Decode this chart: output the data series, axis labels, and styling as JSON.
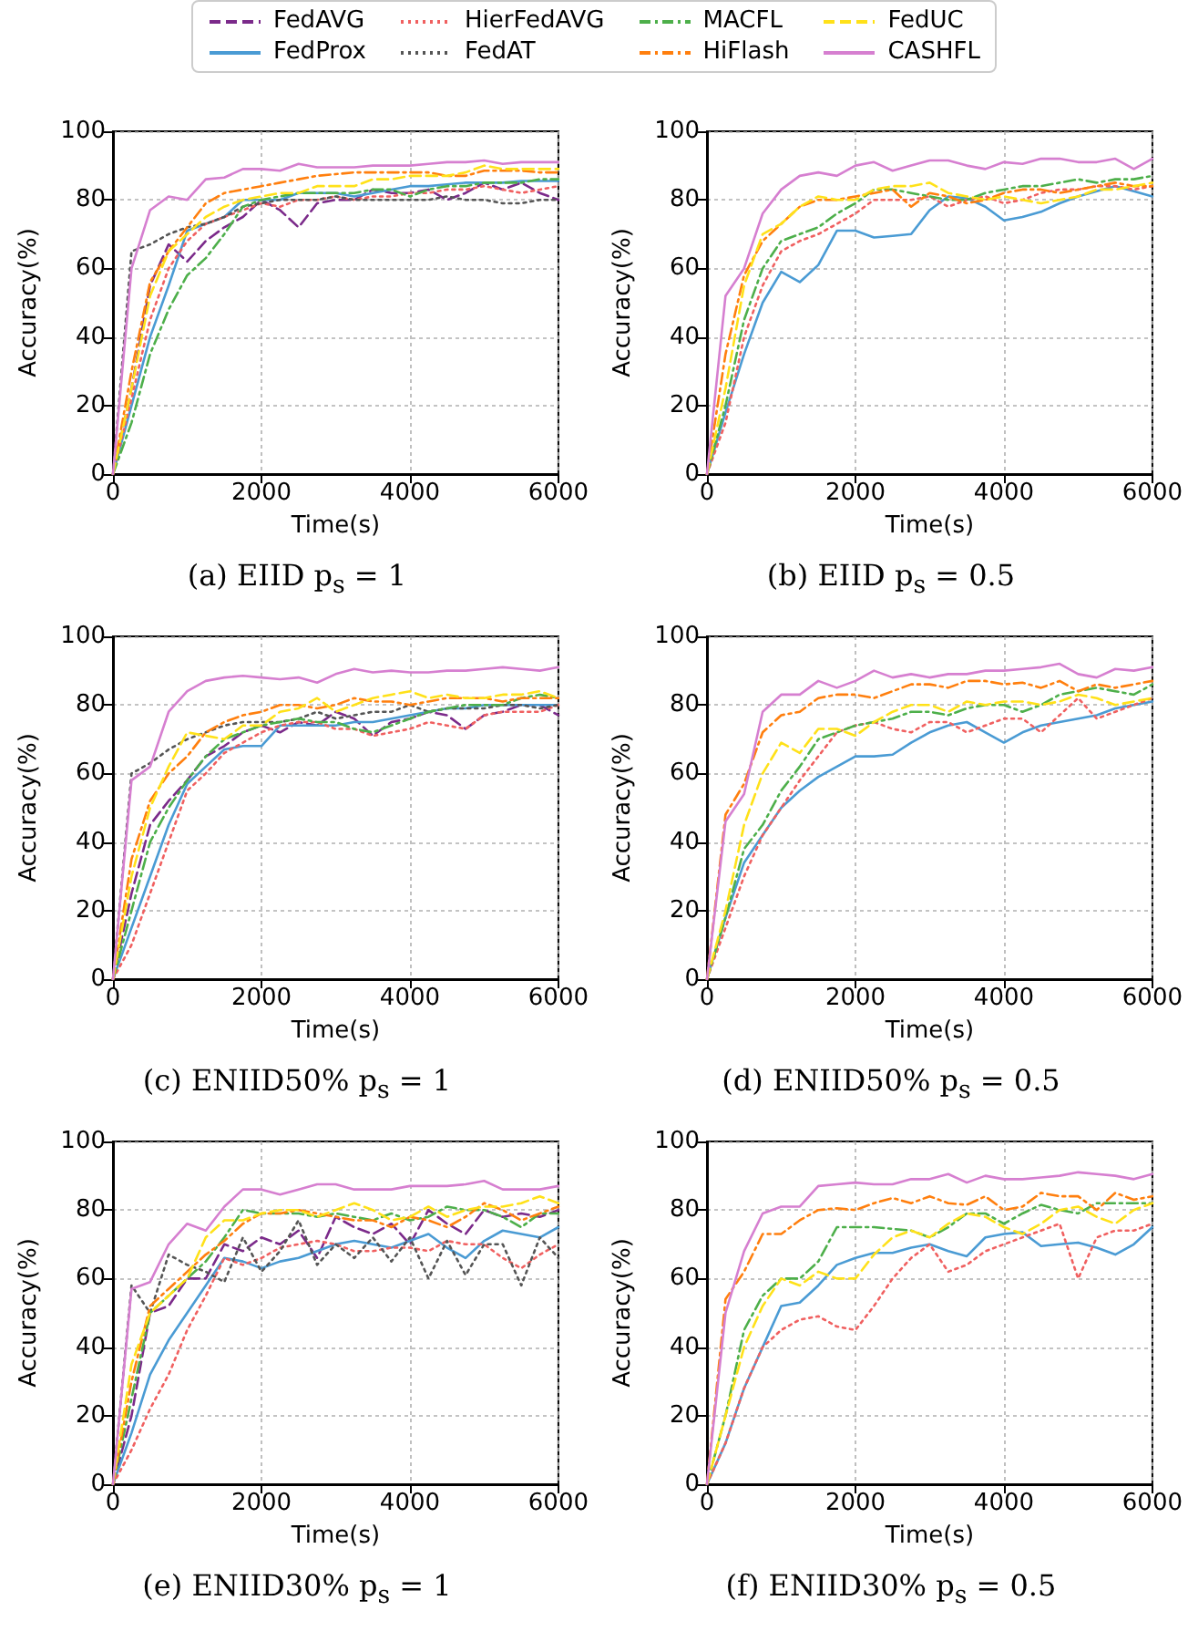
{
  "chart_data": [
    {
      "type": "line",
      "title": "(a) EIID p$_{s}$ = 1",
      "xlabel": "Time(s)",
      "ylabel": "Accuracy(%)",
      "legend": "top",
      "grid": true,
      "xlim": [
        0,
        6000
      ],
      "ylim": [
        0,
        100
      ],
      "xticks": [
        0,
        2000,
        4000,
        6000
      ],
      "yticks": [
        0,
        20,
        40,
        60,
        80,
        100
      ],
      "x": [
        0,
        250,
        500,
        750,
        1000,
        1250,
        1500,
        1750,
        2000,
        2250,
        2500,
        2750,
        3000,
        3250,
        3500,
        3750,
        4000,
        4250,
        4500,
        4750,
        5000,
        5250,
        5500,
        5750,
        6000
      ],
      "series": [
        {
          "name": "FedAVG",
          "color": "#7b2a8a",
          "line_style": "dashed",
          "values": [
            0,
            25,
            55,
            67,
            62,
            68,
            72,
            75,
            80,
            77,
            72,
            79,
            80,
            80,
            83,
            82,
            82,
            83,
            80,
            82,
            85,
            83,
            85,
            82,
            80
          ]
        },
        {
          "name": "FedProx",
          "color": "#4a9bd4",
          "line_style": "solid",
          "values": [
            0,
            20,
            40,
            55,
            71,
            73,
            75,
            80,
            80,
            80,
            82,
            82,
            82,
            81,
            82,
            83,
            84,
            84,
            84.5,
            85,
            85,
            85,
            85.5,
            85.5,
            85.5
          ]
        },
        {
          "name": "HierFedAVG",
          "color": "#f06060",
          "line_style": "dotted",
          "values": [
            0,
            22,
            45,
            60,
            68,
            73,
            75,
            77,
            79,
            78,
            80,
            80,
            81,
            80,
            81,
            81,
            82,
            82,
            83,
            83,
            84,
            83,
            82,
            83,
            84
          ]
        },
        {
          "name": "FedAT",
          "color": "#555555",
          "line_style": "dotted",
          "values": [
            0,
            65,
            67,
            70,
            72,
            73,
            75,
            78,
            79,
            80,
            80,
            80,
            81,
            80,
            80,
            80,
            80,
            80,
            81,
            80,
            80,
            79,
            79,
            80,
            80
          ]
        },
        {
          "name": "MACFL",
          "color": "#4daf4a",
          "line_style": "dashdot",
          "values": [
            0,
            15,
            35,
            48,
            58,
            63,
            70,
            78,
            80,
            81,
            82,
            82,
            82,
            82,
            83,
            83,
            81,
            83,
            84,
            84,
            85,
            85,
            85,
            86,
            86
          ]
        },
        {
          "name": "HiFlash",
          "color": "#ff7f0e",
          "line_style": "dashdot",
          "values": [
            0,
            30,
            56,
            65,
            72,
            79,
            82,
            83,
            84,
            85,
            86,
            87,
            87.5,
            88,
            88,
            88,
            88,
            88,
            87,
            87,
            88.5,
            88.5,
            88.5,
            88,
            88
          ]
        },
        {
          "name": "FedUC",
          "color": "#ffe119",
          "line_style": "dashed",
          "values": [
            0,
            25,
            52,
            65,
            70,
            75,
            78,
            80,
            81,
            82,
            82,
            84,
            84,
            84,
            86,
            86,
            87,
            87,
            87,
            88,
            90,
            89,
            89,
            89,
            89
          ]
        },
        {
          "name": "CASHFL",
          "color": "#d67fd0",
          "line_style": "solid",
          "values": [
            0,
            60,
            77,
            81,
            80,
            86,
            86.5,
            89,
            89,
            88.5,
            90.5,
            89.5,
            89.5,
            89.5,
            90,
            90,
            90,
            90.5,
            91,
            91,
            91.5,
            90.5,
            91,
            91,
            91
          ]
        }
      ]
    },
    {
      "type": "line",
      "title": "(b) EIID p$_{s}$ = 0.5",
      "xlabel": "Time(s)",
      "ylabel": "Accuracy(%)",
      "grid": true,
      "xlim": [
        0,
        6000
      ],
      "ylim": [
        0,
        100
      ],
      "xticks": [
        0,
        2000,
        4000,
        6000
      ],
      "yticks": [
        0,
        20,
        40,
        60,
        80,
        100
      ],
      "x": [
        0,
        250,
        500,
        750,
        1000,
        1250,
        1500,
        1750,
        2000,
        2250,
        2500,
        2750,
        3000,
        3250,
        3500,
        3750,
        4000,
        4250,
        4500,
        4750,
        5000,
        5250,
        5500,
        5750,
        6000
      ],
      "series": [
        {
          "name": "FedProx",
          "color": "#4a9bd4",
          "line_style": "solid",
          "values": [
            0,
            18,
            35,
            50,
            59,
            56,
            61,
            71,
            71,
            69,
            69.5,
            70,
            77,
            81,
            80.5,
            78,
            74,
            75,
            76.5,
            79,
            81,
            82.5,
            84,
            82.5,
            81
          ]
        },
        {
          "name": "HierFedAVG",
          "color": "#f06060",
          "line_style": "dotted",
          "values": [
            0,
            15,
            40,
            55,
            65,
            68,
            70,
            73,
            76,
            80,
            80,
            80,
            81,
            78,
            80,
            81,
            79,
            80,
            82,
            83,
            83,
            84,
            84,
            83,
            84
          ]
        },
        {
          "name": "MACFL",
          "color": "#4daf4a",
          "line_style": "dashdot",
          "values": [
            0,
            20,
            45,
            60,
            68,
            70,
            72,
            76,
            79,
            83,
            83,
            82,
            81,
            80,
            80,
            82,
            83,
            84,
            84,
            85,
            86,
            85,
            86,
            86,
            87
          ]
        },
        {
          "name": "HiFlash",
          "color": "#ff7f0e",
          "line_style": "dashdot",
          "values": [
            0,
            35,
            58,
            68,
            73,
            78,
            80,
            80,
            81,
            82,
            83,
            78,
            82,
            81,
            79,
            80,
            82,
            83,
            83,
            82,
            83,
            84,
            85,
            84,
            84
          ]
        },
        {
          "name": "FedUC",
          "color": "#ffe119",
          "line_style": "dashed",
          "values": [
            0,
            25,
            55,
            70,
            73,
            78,
            81,
            80,
            80,
            83,
            84,
            84,
            85,
            82,
            81,
            80,
            81,
            80,
            79,
            80,
            81,
            83,
            83,
            84,
            85
          ]
        },
        {
          "name": "CASHFL",
          "color": "#d67fd0",
          "line_style": "solid",
          "values": [
            0,
            52,
            60,
            76,
            83,
            87,
            88,
            87,
            90,
            91,
            88.5,
            90,
            91.5,
            91.5,
            90,
            89,
            91,
            90.5,
            92,
            92,
            91,
            91,
            92,
            89,
            92
          ]
        }
      ]
    },
    {
      "type": "line",
      "title": "(c) ENIID50% p$_{s}$ = 1",
      "xlabel": "Time(s)",
      "ylabel": "Accuracy(%)",
      "grid": true,
      "xlim": [
        0,
        6000
      ],
      "ylim": [
        0,
        100
      ],
      "xticks": [
        0,
        2000,
        4000,
        6000
      ],
      "yticks": [
        0,
        20,
        40,
        60,
        80,
        100
      ],
      "x": [
        0,
        250,
        500,
        750,
        1000,
        1250,
        1500,
        1750,
        2000,
        2250,
        2500,
        2750,
        3000,
        3250,
        3500,
        3750,
        4000,
        4250,
        4500,
        4750,
        5000,
        5250,
        5500,
        5750,
        6000
      ],
      "series": [
        {
          "name": "FedAVG",
          "color": "#7b2a8a",
          "line_style": "dashed",
          "values": [
            0,
            25,
            45,
            52,
            58,
            65,
            68,
            72,
            74,
            72,
            75,
            74,
            78,
            76,
            71,
            75,
            76,
            78,
            77,
            73,
            77,
            78,
            80,
            80,
            77
          ]
        },
        {
          "name": "FedProx",
          "color": "#4a9bd4",
          "line_style": "solid",
          "values": [
            0,
            15,
            30,
            45,
            57,
            62,
            67,
            68,
            68,
            74,
            74,
            74,
            74,
            75,
            75,
            76,
            77,
            78,
            79,
            79,
            80,
            80,
            80,
            80,
            80
          ]
        },
        {
          "name": "HierFedAVG",
          "color": "#f06060",
          "line_style": "dotted",
          "values": [
            0,
            10,
            25,
            40,
            55,
            60,
            66,
            69,
            72,
            74,
            75,
            75,
            73,
            73,
            71,
            72,
            73,
            75,
            74,
            73,
            77,
            78,
            78,
            78,
            80
          ]
        },
        {
          "name": "FedAT",
          "color": "#555555",
          "line_style": "dotted",
          "values": [
            0,
            60,
            63,
            67,
            70,
            72,
            74,
            75,
            75,
            75,
            76,
            78,
            76,
            77,
            78,
            78,
            80,
            78,
            79,
            79,
            79,
            80,
            80,
            79,
            80
          ]
        },
        {
          "name": "MACFL",
          "color": "#4daf4a",
          "line_style": "dashdot",
          "values": [
            0,
            20,
            40,
            50,
            58,
            65,
            70,
            72,
            74,
            75,
            76,
            75,
            75,
            73,
            72,
            74,
            76,
            78,
            79,
            80,
            80,
            80,
            82,
            83,
            82
          ]
        },
        {
          "name": "HiFlash",
          "color": "#ff7f0e",
          "line_style": "dashdot",
          "values": [
            0,
            35,
            52,
            60,
            65,
            72,
            75,
            77,
            78,
            80,
            80,
            79,
            80,
            82,
            81,
            81,
            80,
            81,
            82,
            82,
            82,
            81,
            82,
            82,
            82
          ]
        },
        {
          "name": "FedUC",
          "color": "#ffe119",
          "line_style": "dashed",
          "values": [
            0,
            30,
            50,
            62,
            72,
            71,
            70,
            74,
            74,
            78,
            79,
            82,
            78,
            80,
            82,
            83,
            84,
            82,
            83,
            82,
            82,
            83,
            83,
            84,
            82
          ]
        },
        {
          "name": "CASHFL",
          "color": "#d67fd0",
          "line_style": "solid",
          "values": [
            0,
            58,
            62,
            78,
            84,
            87,
            88,
            88.5,
            88,
            87.5,
            88,
            86.5,
            89,
            90.5,
            89.5,
            90,
            89.5,
            89.5,
            90,
            90,
            90.5,
            91,
            90.5,
            90,
            91
          ]
        }
      ]
    },
    {
      "type": "line",
      "title": "(d) ENIID50% p$_{s}$ = 0.5",
      "xlabel": "Time(s)",
      "ylabel": "Accuracy(%)",
      "grid": true,
      "xlim": [
        0,
        6000
      ],
      "ylim": [
        0,
        100
      ],
      "xticks": [
        0,
        2000,
        4000,
        6000
      ],
      "yticks": [
        0,
        20,
        40,
        60,
        80,
        100
      ],
      "x": [
        0,
        250,
        500,
        750,
        1000,
        1250,
        1500,
        1750,
        2000,
        2250,
        2500,
        2750,
        3000,
        3250,
        3500,
        3750,
        4000,
        4250,
        4500,
        4750,
        5000,
        5250,
        5500,
        5750,
        6000
      ],
      "series": [
        {
          "name": "FedProx",
          "color": "#4a9bd4",
          "line_style": "solid",
          "values": [
            0,
            18,
            34,
            42,
            50,
            55,
            59,
            62,
            65,
            65,
            65.5,
            69,
            72,
            74,
            75,
            72,
            69,
            72,
            74,
            75,
            76,
            77,
            79,
            80,
            81
          ]
        },
        {
          "name": "HierFedAVG",
          "color": "#f06060",
          "line_style": "dotted",
          "values": [
            0,
            15,
            30,
            42,
            50,
            58,
            65,
            72,
            74,
            75,
            73,
            72,
            75,
            75,
            72,
            74,
            76,
            76,
            72,
            77,
            82,
            76,
            78,
            80,
            82
          ]
        },
        {
          "name": "MACFL",
          "color": "#4daf4a",
          "line_style": "dashdot",
          "values": [
            0,
            18,
            38,
            45,
            55,
            62,
            70,
            72,
            74,
            75,
            76,
            78,
            78,
            77,
            79,
            80,
            80,
            78,
            80,
            83,
            84,
            85,
            84,
            83,
            86
          ]
        },
        {
          "name": "HiFlash",
          "color": "#ff7f0e",
          "line_style": "dashdot",
          "values": [
            0,
            48,
            57,
            72,
            77,
            78,
            82,
            83,
            83,
            82,
            84,
            86,
            86,
            85,
            87,
            87,
            86,
            86.5,
            85,
            87,
            84,
            86,
            85,
            86,
            87
          ]
        },
        {
          "name": "FedUC",
          "color": "#ffe119",
          "line_style": "dashed",
          "values": [
            0,
            20,
            45,
            60,
            69,
            66,
            73,
            73,
            71,
            75,
            78,
            80,
            80,
            78,
            81,
            80,
            81,
            81,
            80,
            81,
            83,
            82,
            80,
            81,
            82
          ]
        },
        {
          "name": "CASHFL",
          "color": "#d67fd0",
          "line_style": "solid",
          "values": [
            0,
            46,
            54,
            78,
            83,
            83,
            87,
            85,
            87,
            90,
            88,
            89,
            88,
            89,
            89,
            90,
            90,
            90.5,
            91,
            92,
            89,
            88,
            90.5,
            90,
            91
          ]
        }
      ]
    },
    {
      "type": "line",
      "title": "(e) ENIID30% p$_{s}$ = 1",
      "xlabel": "Time(s)",
      "ylabel": "Accuracy(%)",
      "grid": true,
      "xlim": [
        0,
        6000
      ],
      "ylim": [
        0,
        100
      ],
      "xticks": [
        0,
        2000,
        4000,
        6000
      ],
      "yticks": [
        0,
        20,
        40,
        60,
        80,
        100
      ],
      "x": [
        0,
        250,
        500,
        750,
        1000,
        1250,
        1500,
        1750,
        2000,
        2250,
        2500,
        2750,
        3000,
        3250,
        3500,
        3750,
        4000,
        4250,
        4500,
        4750,
        5000,
        5250,
        5500,
        5750,
        6000
      ],
      "series": [
        {
          "name": "FedAVG",
          "color": "#7b2a8a",
          "line_style": "dashed",
          "values": [
            0,
            20,
            50,
            52,
            60,
            60,
            70,
            68,
            72,
            70,
            74,
            66,
            78,
            75,
            73,
            76,
            70,
            80,
            76,
            73,
            80,
            78,
            79,
            78,
            80
          ]
        },
        {
          "name": "FedProx",
          "color": "#4a9bd4",
          "line_style": "solid",
          "values": [
            0,
            15,
            32,
            42,
            50,
            58,
            66,
            65,
            63,
            65,
            66,
            68,
            70,
            71,
            70,
            69,
            71,
            73,
            69,
            66,
            71,
            74,
            73,
            72,
            75
          ]
        },
        {
          "name": "HierFedAVG",
          "color": "#f06060",
          "line_style": "dotted",
          "values": [
            0,
            10,
            22,
            32,
            45,
            55,
            66,
            64,
            66,
            69,
            70,
            71,
            70,
            68,
            68,
            69,
            69,
            68,
            71,
            70,
            70,
            66,
            63,
            67,
            70
          ]
        },
        {
          "name": "FedAT",
          "color": "#555555",
          "line_style": "dotted",
          "values": [
            0,
            58,
            50,
            67,
            64,
            62,
            59,
            72,
            62,
            68,
            77,
            64,
            70,
            66,
            72,
            65,
            72,
            60,
            71,
            61,
            70,
            70,
            58,
            72,
            66
          ]
        },
        {
          "name": "MACFL",
          "color": "#4daf4a",
          "line_style": "dashdot",
          "values": [
            0,
            25,
            50,
            55,
            60,
            65,
            72,
            80,
            79,
            79,
            79,
            78,
            79,
            78,
            77,
            79,
            77,
            78,
            81,
            80,
            80,
            78,
            75,
            79,
            79
          ]
        },
        {
          "name": "HiFlash",
          "color": "#ff7f0e",
          "line_style": "dashdot",
          "values": [
            0,
            30,
            52,
            57,
            62,
            67,
            71,
            76,
            79,
            79,
            80,
            79,
            78,
            77,
            77,
            75,
            78,
            77,
            75,
            78,
            82,
            80,
            77,
            79,
            81
          ]
        },
        {
          "name": "FedUC",
          "color": "#ffe119",
          "line_style": "dashed",
          "values": [
            0,
            35,
            50,
            55,
            60,
            72,
            77,
            77,
            79,
            80,
            80,
            78,
            80,
            82,
            80,
            77,
            78,
            81,
            78,
            80,
            81,
            81,
            82,
            84,
            82
          ]
        },
        {
          "name": "CASHFL",
          "color": "#d67fd0",
          "line_style": "solid",
          "values": [
            0,
            57,
            59,
            70,
            76,
            74,
            81,
            86,
            86,
            84.5,
            86,
            87.5,
            87.5,
            86,
            86,
            86,
            87,
            87,
            87,
            87.5,
            88.5,
            86,
            86,
            86,
            87
          ]
        }
      ]
    },
    {
      "type": "line",
      "title": "(f) ENIID30% p$_{s}$ = 0.5",
      "xlabel": "Time(s)",
      "ylabel": "Accuracy(%)",
      "grid": true,
      "xlim": [
        0,
        6000
      ],
      "ylim": [
        0,
        100
      ],
      "xticks": [
        0,
        2000,
        4000,
        6000
      ],
      "yticks": [
        0,
        20,
        40,
        60,
        80,
        100
      ],
      "x": [
        0,
        250,
        500,
        750,
        1000,
        1250,
        1500,
        1750,
        2000,
        2250,
        2500,
        2750,
        3000,
        3250,
        3500,
        3750,
        4000,
        4250,
        4500,
        4750,
        5000,
        5250,
        5500,
        5750,
        6000
      ],
      "series": [
        {
          "name": "FedProx",
          "color": "#4a9bd4",
          "line_style": "solid",
          "values": [
            0,
            12,
            28,
            40,
            52,
            53,
            58,
            64,
            66,
            67.5,
            67.5,
            69,
            70,
            68,
            66.5,
            72,
            73,
            73.5,
            69.5,
            70,
            70.5,
            69,
            67,
            70,
            75
          ]
        },
        {
          "name": "HierFedAVG",
          "color": "#f06060",
          "line_style": "dotted",
          "values": [
            0,
            12,
            28,
            40,
            45,
            48,
            49,
            46,
            45,
            52,
            60,
            66,
            70,
            62,
            64,
            68,
            70,
            72,
            74,
            76,
            60,
            72,
            74,
            74,
            76
          ]
        },
        {
          "name": "MACFL",
          "color": "#4daf4a",
          "line_style": "dashdot",
          "values": [
            0,
            20,
            45,
            55,
            60,
            60,
            65,
            75,
            75,
            75,
            74.5,
            74,
            72,
            75,
            79,
            79,
            76,
            79,
            81.5,
            80,
            79,
            82,
            82,
            82,
            82
          ]
        },
        {
          "name": "HiFlash",
          "color": "#ff7f0e",
          "line_style": "dashdot",
          "values": [
            0,
            54,
            62,
            73,
            73,
            77,
            80,
            80.5,
            80,
            82,
            83.5,
            82,
            84,
            82,
            81.5,
            84,
            80,
            81,
            85,
            84,
            84,
            80,
            85,
            83,
            84
          ]
        },
        {
          "name": "FedUC",
          "color": "#ffe119",
          "line_style": "dashed",
          "values": [
            0,
            20,
            40,
            52,
            60,
            58,
            62,
            60,
            60,
            67,
            72,
            74,
            72,
            76,
            79,
            78,
            75,
            73,
            76,
            80,
            81,
            78,
            76,
            80,
            82
          ]
        },
        {
          "name": "CASHFL",
          "color": "#d67fd0",
          "line_style": "solid",
          "values": [
            0,
            50,
            68,
            79,
            81,
            81,
            87,
            87.5,
            88,
            87.5,
            87.5,
            89,
            89,
            90.5,
            88,
            90,
            89,
            89,
            89.5,
            90,
            91,
            90.5,
            90,
            89,
            90.5
          ]
        }
      ]
    }
  ]
}
